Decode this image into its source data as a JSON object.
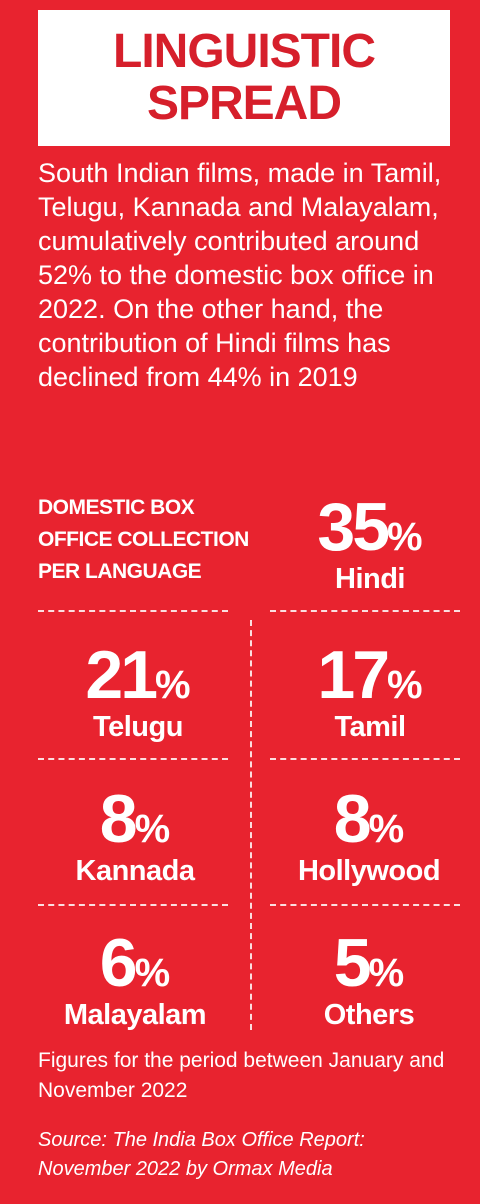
{
  "header": {
    "title_line1": "LINGUISTIC",
    "title_line2": "SPREAD"
  },
  "intro_text": "South Indian films, made in Tamil, Telugu, Kannada and Malayalam, cumulatively contributed around 52% to the domestic box office in 2022. On the other hand, the contribution of Hindi films has declined from 44% in 2019",
  "chart_data": {
    "type": "table",
    "title_lines": [
      "DOMESTIC BOX",
      "OFFICE COLLECTION",
      "PER LANGUAGE"
    ],
    "unit": "%",
    "categories": [
      "Hindi",
      "Telugu",
      "Tamil",
      "Kannada",
      "Hollywood",
      "Malayalam",
      "Others"
    ],
    "values": [
      35,
      21,
      17,
      8,
      8,
      6,
      5
    ]
  },
  "footer": {
    "note": "Figures for the period between January and November 2022",
    "source": "Source: The India Box Office Report: November 2022 by Ormax Media"
  },
  "colors": {
    "background": "#e8232f",
    "title_text": "#d61f2b",
    "text": "#ffffff"
  }
}
